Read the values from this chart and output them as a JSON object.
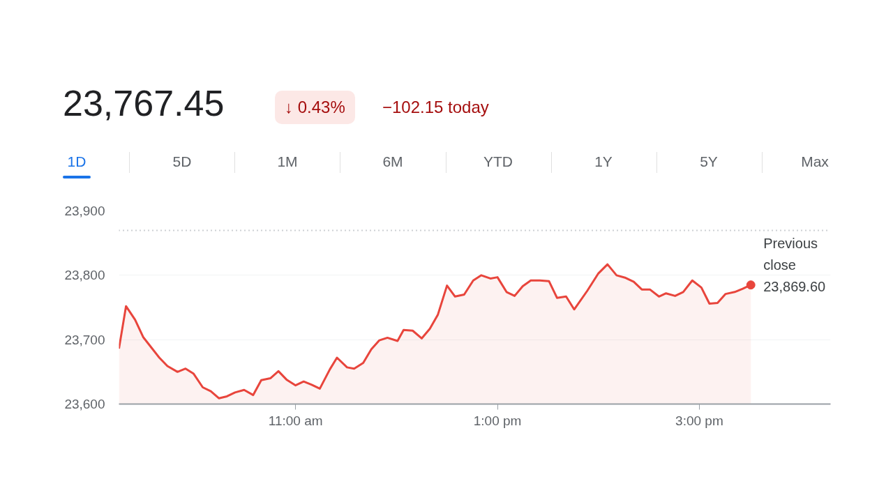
{
  "chart_data": {
    "type": "area",
    "title": "23,767.45",
    "annotations": [
      "↓ 0.43%",
      "−102.15 today",
      "1D",
      "5D",
      "1M",
      "6M",
      "YTD",
      "1Y",
      "5Y",
      "Max"
    ],
    "x": [
      9.25,
      9.32,
      9.41,
      9.49,
      9.57,
      9.65,
      9.73,
      9.83,
      9.91,
      9.99,
      10.08,
      10.16,
      10.24,
      10.32,
      10.4,
      10.49,
      10.58,
      10.66,
      10.75,
      10.83,
      10.91,
      11.0,
      11.08,
      11.16,
      11.24,
      11.34,
      11.41,
      11.51,
      11.58,
      11.67,
      11.75,
      11.83,
      11.91,
      12.01,
      12.07,
      12.16,
      12.25,
      12.33,
      12.41,
      12.5,
      12.58,
      12.67,
      12.76,
      12.84,
      12.93,
      13.0,
      13.09,
      13.17,
      13.25,
      13.33,
      13.42,
      13.51,
      13.59,
      13.68,
      13.76,
      13.89,
      14.0,
      14.09,
      14.18,
      14.27,
      14.35,
      14.43,
      14.51,
      14.6,
      14.67,
      14.76,
      14.84,
      14.93,
      15.02,
      15.1,
      15.18,
      15.26,
      15.35,
      15.43,
      15.51
    ],
    "series": [
      {
        "color": "#e8453c",
        "values": [
          23686,
          23752,
          23731,
          23704,
          23688,
          23672,
          23659,
          23650,
          23655,
          23647,
          23626,
          23620,
          23609,
          23612,
          23618,
          23622,
          23614,
          23637,
          23640,
          23651,
          23638,
          23629,
          23635,
          23630,
          23624,
          23654,
          23672,
          23657,
          23655,
          23664,
          23685,
          23699,
          23703,
          23698,
          23715,
          23714,
          23702,
          23717,
          23739,
          23784,
          23767,
          23770,
          23792,
          23800,
          23795,
          23797,
          23774,
          23768,
          23783,
          23792,
          23792,
          23791,
          23765,
          23767,
          23747,
          23776,
          23803,
          23817,
          23800,
          23796,
          23790,
          23778,
          23778,
          23767,
          23772,
          23768,
          23774,
          23792,
          23781,
          23756,
          23757,
          23771,
          23774,
          23779,
          23785
        ]
      }
    ],
    "xlim": [
      9.25,
      16.3
    ],
    "ylim": [
      23600,
      23900
    ],
    "xticks": [
      {
        "value": 11,
        "label": "11:00 am"
      },
      {
        "value": 13,
        "label": "1:00 pm"
      },
      {
        "value": 15,
        "label": "3:00 pm"
      }
    ],
    "yticks": [
      {
        "value": 23600,
        "label": "23,600"
      },
      {
        "value": 23700,
        "label": "23,700"
      },
      {
        "value": 23800,
        "label": "23,800"
      },
      {
        "value": 23900,
        "label": "23,900"
      }
    ],
    "ref_lines": [
      {
        "axis": "y",
        "value": 23869.6,
        "label": "Previous close 23,869.60",
        "line_style": "dotted",
        "color": "#9aa0a6"
      }
    ],
    "grid": "y"
  }
}
